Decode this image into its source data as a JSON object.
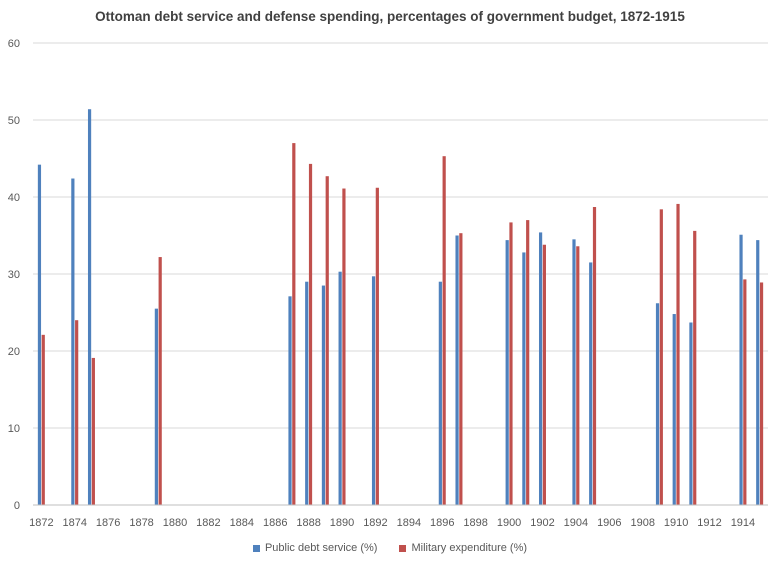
{
  "chart_data": {
    "type": "bar",
    "title": "Ottoman debt service and defense spending, percentages of government budget, 1872-1915",
    "xlabel": "",
    "ylabel": "",
    "ylim": [
      0,
      60
    ],
    "yticks": [
      0,
      10,
      20,
      30,
      40,
      50,
      60
    ],
    "xticks": [
      1872,
      1874,
      1876,
      1878,
      1880,
      1882,
      1884,
      1886,
      1888,
      1890,
      1892,
      1894,
      1896,
      1898,
      1900,
      1902,
      1904,
      1906,
      1908,
      1910,
      1912,
      1914
    ],
    "x": [
      1872,
      1873,
      1874,
      1875,
      1876,
      1877,
      1878,
      1879,
      1880,
      1881,
      1882,
      1883,
      1884,
      1885,
      1886,
      1887,
      1888,
      1889,
      1890,
      1891,
      1892,
      1893,
      1894,
      1895,
      1896,
      1897,
      1898,
      1899,
      1900,
      1901,
      1902,
      1903,
      1904,
      1905,
      1906,
      1907,
      1908,
      1909,
      1910,
      1911,
      1912,
      1913,
      1914,
      1915
    ],
    "series": [
      {
        "name": "Public debt service (%)",
        "color": "#4f81bd",
        "values": [
          44.2,
          null,
          42.4,
          51.4,
          null,
          null,
          null,
          25.5,
          null,
          null,
          null,
          null,
          null,
          null,
          null,
          27.1,
          29.0,
          28.5,
          30.3,
          null,
          29.7,
          null,
          null,
          null,
          29.0,
          35.0,
          null,
          null,
          34.4,
          32.8,
          35.4,
          null,
          34.5,
          31.5,
          null,
          null,
          null,
          26.2,
          24.8,
          23.7,
          null,
          null,
          35.1,
          34.4
        ]
      },
      {
        "name": "Military expenditure (%)",
        "color": "#c0504d",
        "values": [
          22.1,
          null,
          24.0,
          19.1,
          null,
          null,
          null,
          32.2,
          null,
          null,
          null,
          null,
          null,
          null,
          null,
          47.0,
          44.3,
          42.7,
          41.1,
          null,
          41.2,
          null,
          null,
          null,
          45.3,
          35.3,
          null,
          null,
          36.7,
          37.0,
          33.8,
          null,
          33.6,
          38.7,
          null,
          null,
          null,
          38.4,
          39.1,
          35.6,
          null,
          null,
          29.3,
          28.9
        ]
      }
    ],
    "legend_position": "bottom-center",
    "grid": true
  }
}
